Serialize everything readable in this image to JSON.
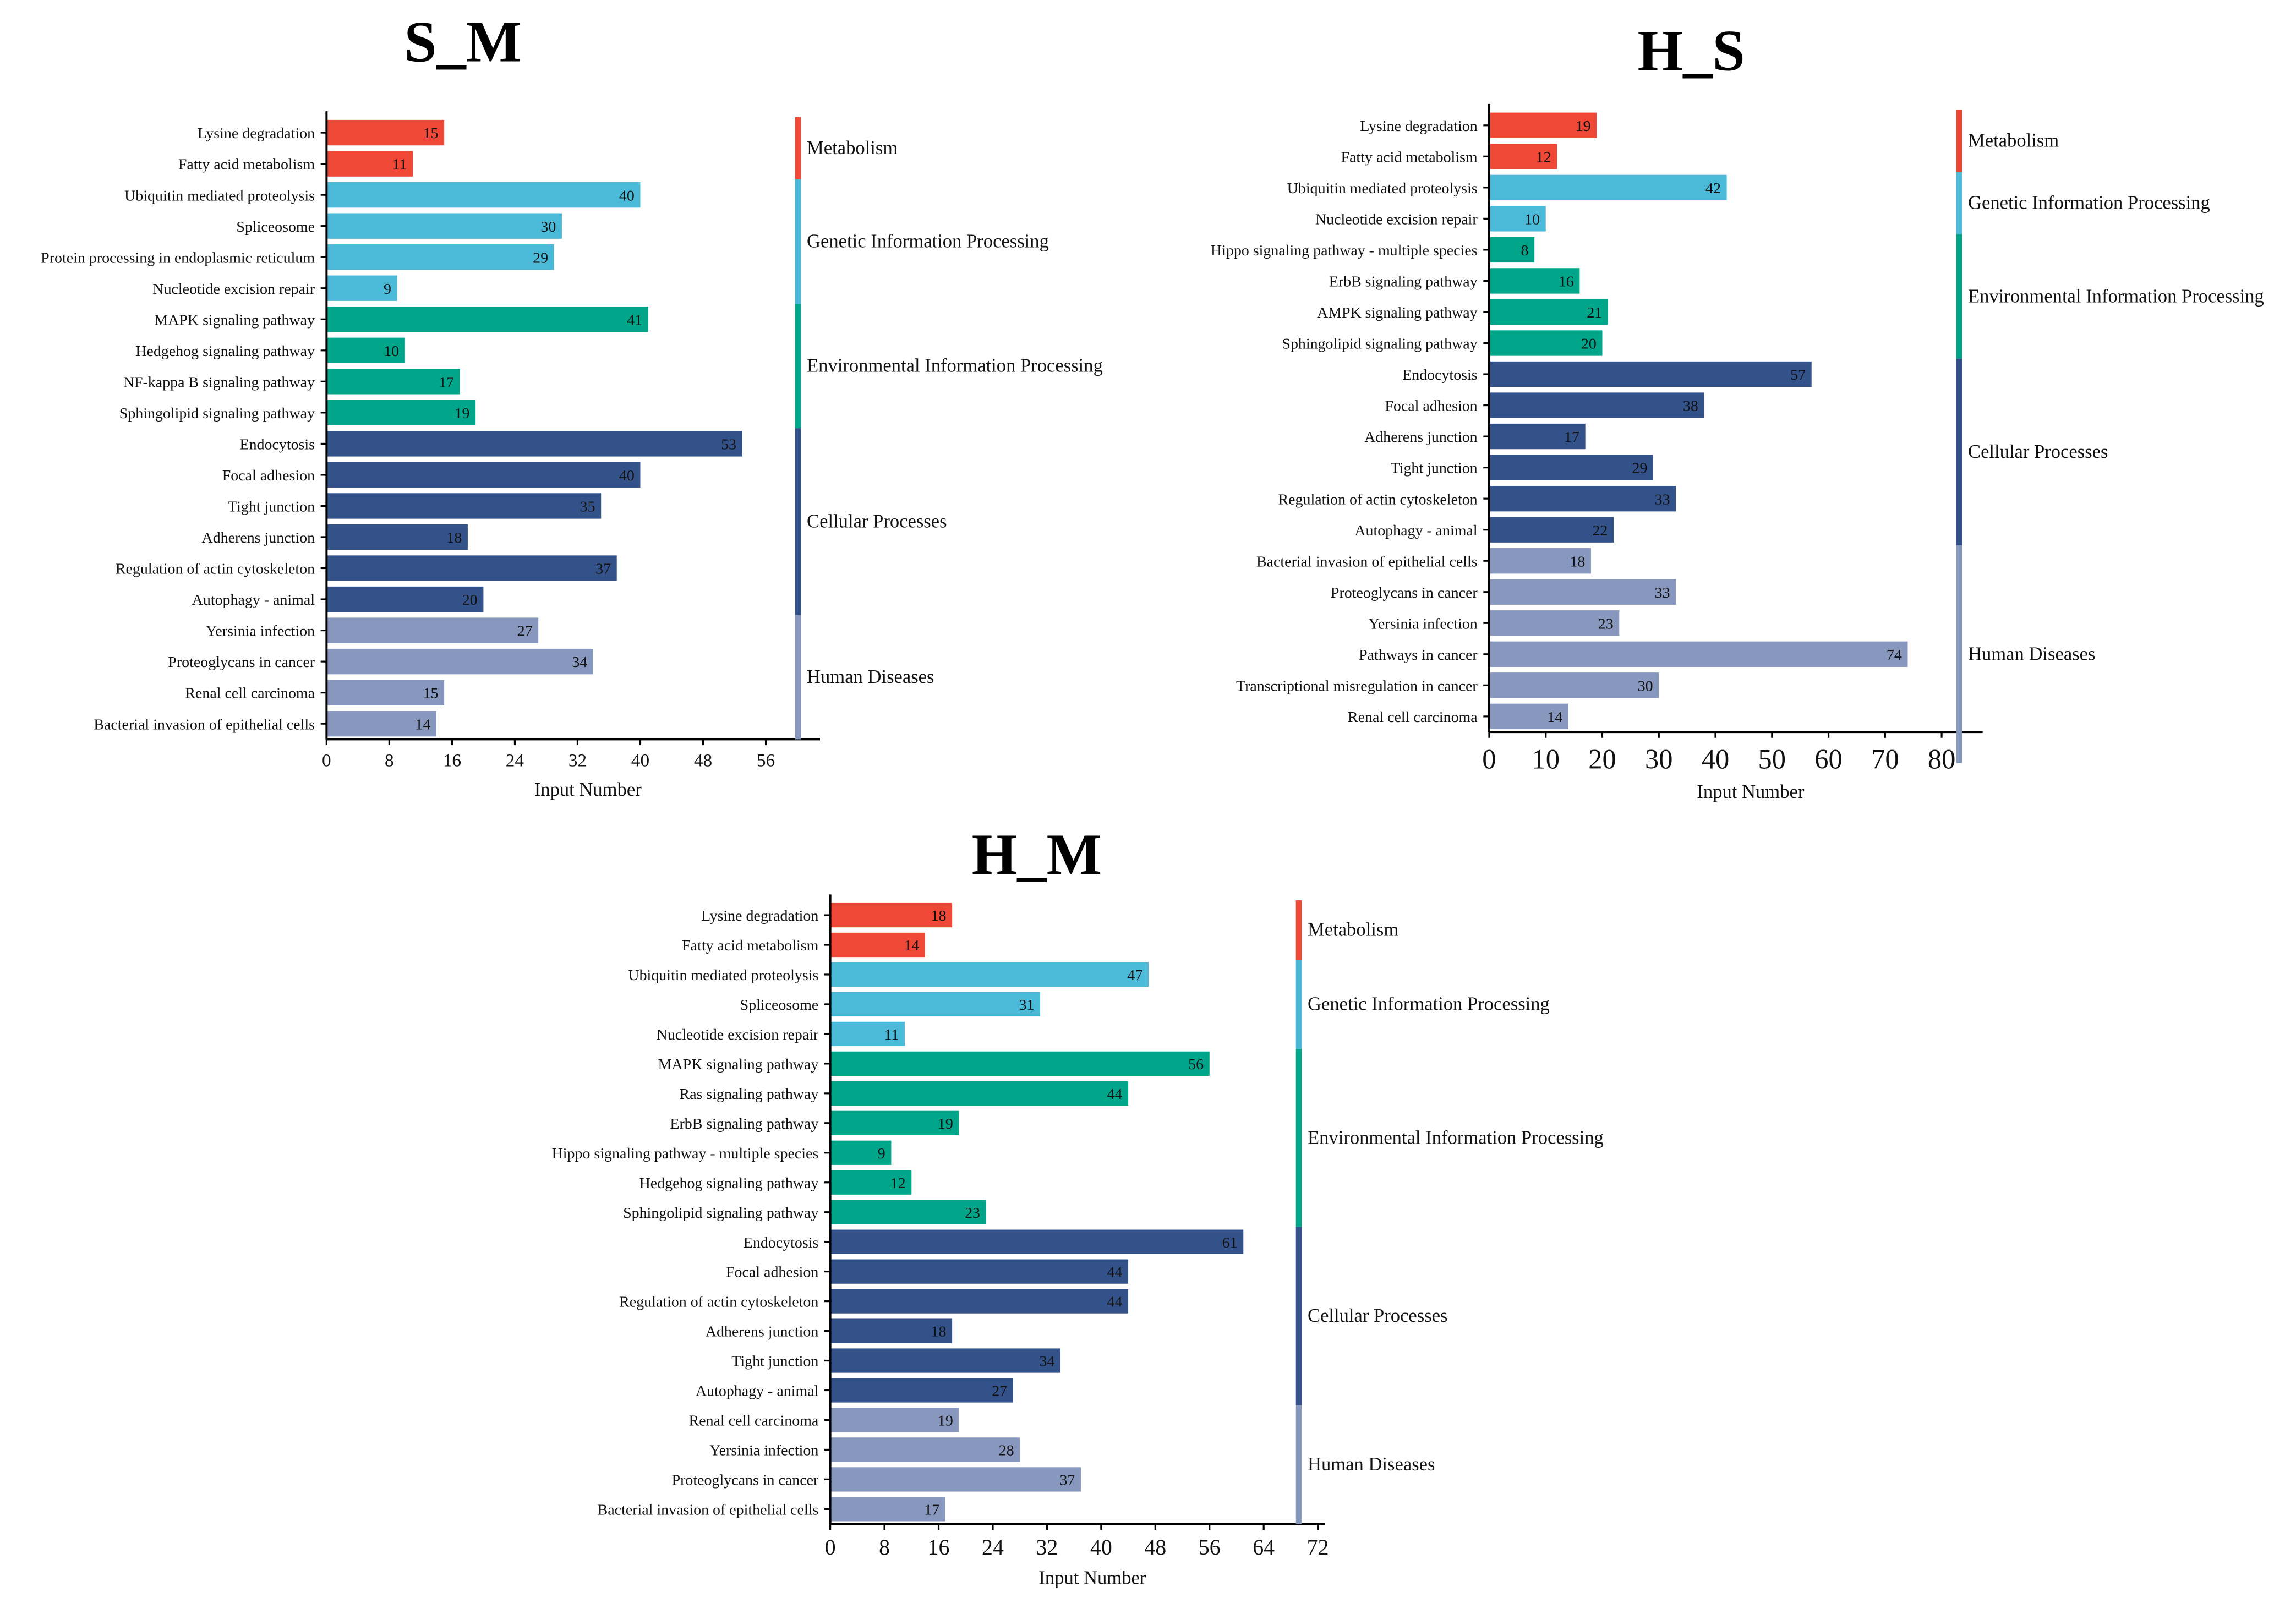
{
  "colors": {
    "Metabolism": "#ef4836",
    "Genetic Information Processing": "#4bbad9",
    "Environmental Information Processing": "#00a58a",
    "Cellular Processes": "#34528a",
    "Human Diseases": "#8797bd"
  },
  "chart_data": [
    {
      "type": "bar",
      "orientation": "horizontal",
      "title": "S_M",
      "xlabel": "Input Number",
      "xticks": [
        0,
        8,
        16,
        24,
        32,
        40,
        48,
        56
      ],
      "xlim": [
        0,
        63
      ],
      "groups": [
        {
          "name": "Metabolism",
          "count": 2
        },
        {
          "name": "Genetic Information Processing",
          "count": 4
        },
        {
          "name": "Environmental Information Processing",
          "count": 4
        },
        {
          "name": "Cellular Processes",
          "count": 6
        },
        {
          "name": "Human Diseases",
          "count": 4
        }
      ],
      "categories": [
        "Lysine degradation",
        "Fatty acid metabolism",
        "Ubiquitin mediated proteolysis",
        "Spliceosome",
        "Protein processing in endoplasmic reticulum",
        "Nucleotide excision repair",
        "MAPK signaling pathway",
        "Hedgehog signaling pathway",
        "NF-kappa B signaling pathway",
        "Sphingolipid signaling pathway",
        "Endocytosis",
        "Focal adhesion",
        "Tight junction",
        "Adherens junction",
        "Regulation of actin cytoskeleton",
        "Autophagy - animal",
        "Yersinia infection",
        "Proteoglycans in cancer",
        "Renal cell carcinoma",
        "Bacterial invasion of epithelial cells"
      ],
      "values": [
        15,
        11,
        40,
        30,
        29,
        9,
        41,
        10,
        17,
        19,
        53,
        40,
        35,
        18,
        37,
        20,
        27,
        34,
        15,
        14
      ]
    },
    {
      "type": "bar",
      "orientation": "horizontal",
      "title": "H_S",
      "xlabel": "Input Number",
      "xticks": [
        0,
        10,
        20,
        30,
        40,
        50,
        60,
        70,
        80
      ],
      "xlim": [
        0,
        87
      ],
      "groups": [
        {
          "name": "Metabolism",
          "count": 2
        },
        {
          "name": "Genetic Information Processing",
          "count": 2
        },
        {
          "name": "Environmental Information Processing",
          "count": 4
        },
        {
          "name": "Cellular Processes",
          "count": 6
        },
        {
          "name": "Human Diseases",
          "count": 7
        }
      ],
      "categories": [
        "Lysine degradation",
        "Fatty acid metabolism",
        "Ubiquitin mediated proteolysis",
        "Nucleotide excision repair",
        "Hippo signaling pathway - multiple species",
        "ErbB signaling pathway",
        "AMPK signaling pathway",
        "Sphingolipid signaling pathway",
        "Endocytosis",
        "Focal adhesion",
        "Adherens junction",
        "Tight junction",
        "Regulation of actin cytoskeleton",
        "Autophagy - animal",
        "Bacterial invasion of epithelial cells",
        "Proteoglycans in cancer",
        "Yersinia infection",
        "Pathways in cancer",
        "Transcriptional misregulation in cancer",
        "Renal cell carcinoma"
      ],
      "values": [
        19,
        12,
        42,
        10,
        8,
        16,
        21,
        20,
        57,
        38,
        17,
        29,
        33,
        22,
        18,
        33,
        23,
        74,
        30,
        14
      ]
    },
    {
      "type": "bar",
      "orientation": "horizontal",
      "title": "H_M",
      "xlabel": "Input Number",
      "xticks": [
        0,
        8,
        16,
        24,
        32,
        40,
        48,
        56,
        64,
        72
      ],
      "xlim": [
        0,
        73
      ],
      "groups": [
        {
          "name": "Metabolism",
          "count": 2
        },
        {
          "name": "Genetic Information Processing",
          "count": 3
        },
        {
          "name": "Environmental Information Processing",
          "count": 6
        },
        {
          "name": "Cellular Processes",
          "count": 6
        },
        {
          "name": "Human Diseases",
          "count": 4
        }
      ],
      "categories": [
        "Lysine degradation",
        "Fatty acid metabolism",
        "Ubiquitin mediated proteolysis",
        "Spliceosome",
        "Nucleotide excision repair",
        "MAPK signaling pathway",
        "Ras signaling pathway",
        "ErbB signaling pathway",
        "Hippo signaling pathway - multiple species",
        "Hedgehog signaling pathway",
        "Sphingolipid signaling pathway",
        "Endocytosis",
        "Focal adhesion",
        "Regulation of actin cytoskeleton",
        "Adherens junction",
        "Tight junction",
        "Autophagy - animal",
        "Renal cell carcinoma",
        "Yersinia infection",
        "Proteoglycans in cancer",
        "Bacterial invasion of epithelial cells"
      ],
      "values": [
        18,
        14,
        47,
        31,
        11,
        56,
        44,
        19,
        9,
        12,
        23,
        61,
        44,
        44,
        18,
        34,
        27,
        19,
        28,
        37,
        17
      ]
    }
  ]
}
